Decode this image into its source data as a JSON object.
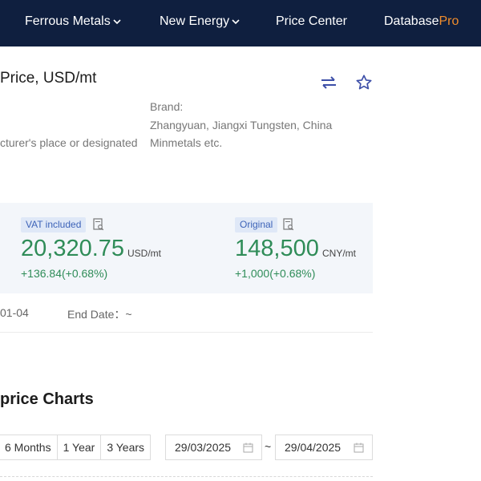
{
  "nav": {
    "ferrous_metals": "Ferrous Metals",
    "new_energy": "New Energy",
    "price_center": "Price Center",
    "database": "Database",
    "database_pro": "Pro"
  },
  "product": {
    "title": "Price, USD/mt",
    "place_text": "cturer's place or designated",
    "brand_label": "Brand:",
    "brand_line1": "Zhangyuan, Jiangxi Tungsten, China",
    "brand_line2": "Minmetals etc."
  },
  "prices": {
    "vat_tag": "VAT included",
    "usd_value": "20,320.75",
    "usd_unit": "USD/mt",
    "usd_change": "+136.84(+0.68%)",
    "original_tag": "Original",
    "cny_value": "148,500",
    "cny_unit": "CNY/mt",
    "cny_change": "+1,000(+0.68%)"
  },
  "dates": {
    "start_date": "01-04",
    "end_date": "End Date：~"
  },
  "charts": {
    "section_title": "price Charts",
    "ranges": [
      "6 Months",
      "1 Year",
      "3 Years"
    ],
    "date_from": "29/03/2025",
    "separator": "~",
    "date_to": "29/04/2025"
  },
  "colors": {
    "nav_bg": "#0f1f3f",
    "pro_accent": "#f08c2c",
    "price_green": "#2f8c58",
    "tag_blue": "#3d63b8",
    "icon_blue": "#3d4fa8"
  },
  "icons": {
    "nav_dropdown": "chevron-down-icon",
    "swap": "swap-icon",
    "favorite": "star-icon",
    "document": "document-search-icon",
    "calendar": "calendar-icon"
  }
}
